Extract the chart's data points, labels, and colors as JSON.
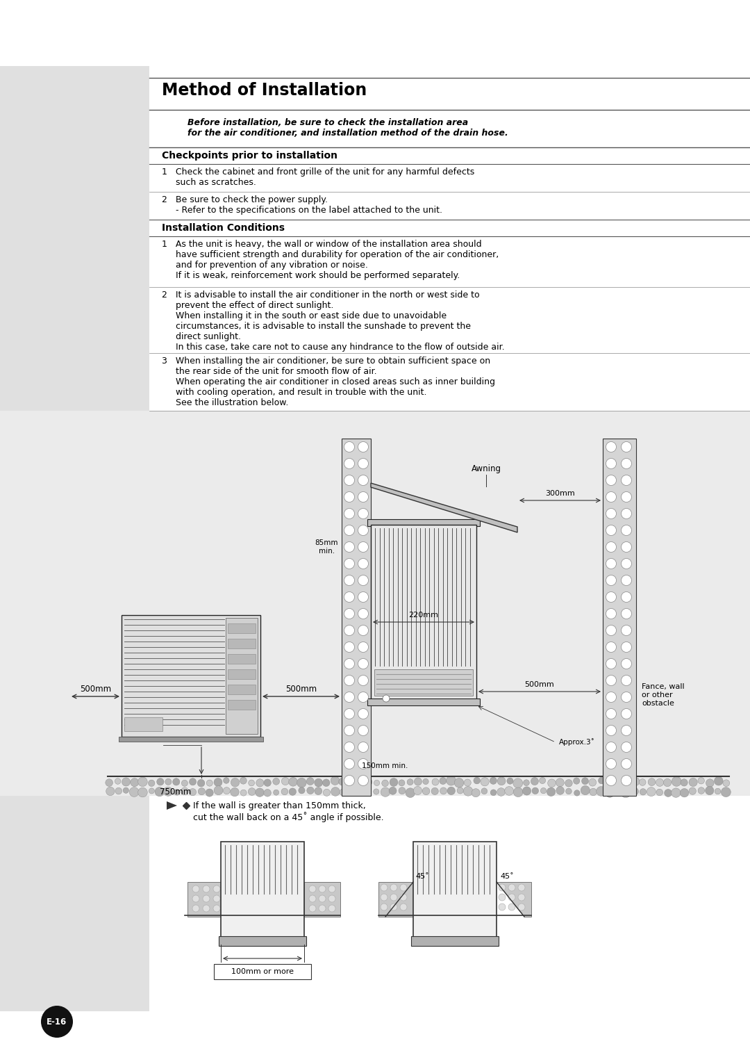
{
  "title": "Method of Installation",
  "bg_color": "#ffffff",
  "sidebar_color": "#e0e0e0",
  "page_number": "E-16",
  "intro_bold": "Before installation, be sure to check the installation area\nfor the air conditioner, and installation method of the drain hose.",
  "section1_title": "Checkpoints prior to installation",
  "section1_items": [
    "1   Check the cabinet and front grille of the unit for any harmful defects\n     such as scratches.",
    "2   Be sure to check the power supply.\n     - Refer to the specifications on the label attached to the unit."
  ],
  "section2_title": "Installation Conditions",
  "section2_items": [
    "1   As the unit is heavy, the wall or window of the installation area should\n     have sufficient strength and durability for operation of the air conditioner,\n     and for prevention of any vibration or noise.\n     If it is weak, reinforcement work should be performed separately.",
    "2   It is advisable to install the air conditioner in the north or west side to\n     prevent the effect of direct sunlight.\n     When installing it in the south or east side due to unavoidable\n     circumstances, it is advisable to install the sunshade to prevent the\n     direct sunlight.\n     In this case, take care not to cause any hindrance to the flow of outside air.",
    "3   When installing the air conditioner, be sure to obtain sufficient space on\n     the rear side of the unit for smooth flow of air.\n     When operating the air conditioner in closed areas such as inner building\n     with cooling operation, and result in trouble with the unit.\n     See the illustration below."
  ],
  "note_text": "If the wall is greater than 150mm thick,\ncut the wall back on a 45˚ angle if possible.",
  "dim_500mm_left": "500mm",
  "dim_500mm_right": "500mm",
  "dim_750mm": "750mm",
  "dim_85mm": "85mm\nmin.",
  "dim_220mm": "220mm",
  "dim_300mm": "300mm",
  "dim_500mm_wall": "500mm",
  "dim_150mm": "150mm min.",
  "dim_approx": "Approx.3˚",
  "label_awning": "Awning",
  "label_fence": "Fance, wall\nor other\nobstacle",
  "label_100mm": "100mm or more",
  "label_45_1": "45˚",
  "label_45_2": "45˚"
}
